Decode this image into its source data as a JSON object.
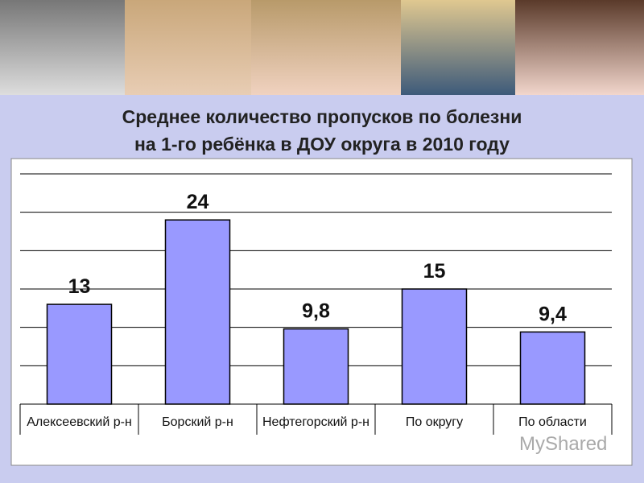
{
  "title_lines": [
    "Среднее количество пропусков по болезни",
    "на 1-го ребёнка в ДОУ округа в 2010 году"
  ],
  "watermark": "MyShared",
  "chart_data": {
    "type": "bar",
    "categories": [
      "Алексеевский р-н",
      "Борский р-н",
      "Нефтегорский р-н",
      "По округу",
      "По области"
    ],
    "values": [
      13,
      24,
      9.8,
      15,
      9.4
    ],
    "value_labels": [
      "13",
      "24",
      "9,8",
      "15",
      "9,4"
    ],
    "color": "#9999ff",
    "ylim": [
      0,
      30
    ],
    "yticks": [
      0,
      5,
      10,
      15,
      20,
      25,
      30
    ],
    "grid": true
  }
}
